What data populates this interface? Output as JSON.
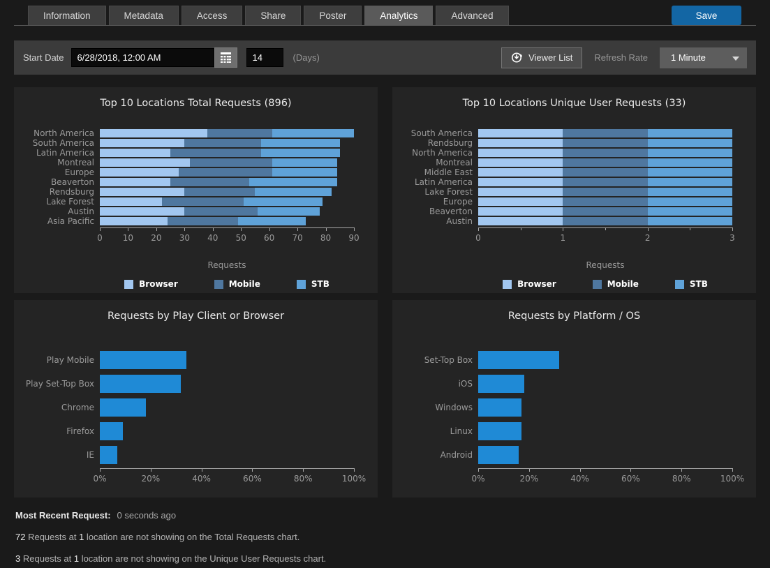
{
  "tabs": {
    "items": [
      "Information",
      "Metadata",
      "Access",
      "Share",
      "Poster",
      "Analytics",
      "Advanced"
    ],
    "active": "Analytics",
    "save_label": "Save"
  },
  "toolbar": {
    "start_date_label": "Start Date",
    "start_date_value": "6/28/2018, 12:00 AM",
    "days_value": "14",
    "days_label": "(Days)",
    "viewer_list_label": "Viewer List",
    "refresh_rate_label": "Refresh Rate",
    "refresh_rate_value": "1 Minute"
  },
  "colors": {
    "browser": "#a2c7f0",
    "mobile": "#4f779f",
    "stb": "#5fa2d8",
    "accent_bar": "#1f8ad6",
    "save_button": "#1366a4",
    "panel_bg": "#242424"
  },
  "chart_data": [
    {
      "type": "bar",
      "orientation": "horizontal",
      "stacked": true,
      "title": "Top 10 Locations Total Requests (896)",
      "categories": [
        "North America",
        "South America",
        "Latin America",
        "Montreal",
        "Europe",
        "Beaverton",
        "Rendsburg",
        "Lake Forest",
        "Austin",
        "Asia Pacific"
      ],
      "series": [
        {
          "name": "Browser",
          "color": "#a2c7f0",
          "values": [
            38,
            30,
            25,
            32,
            28,
            25,
            30,
            22,
            30,
            24
          ]
        },
        {
          "name": "Mobile",
          "color": "#4f779f",
          "values": [
            23,
            27,
            32,
            29,
            33,
            28,
            25,
            29,
            26,
            25
          ]
        },
        {
          "name": "STB",
          "color": "#5fa2d8",
          "values": [
            29,
            28,
            28,
            23,
            23,
            31,
            27,
            28,
            22,
            24
          ]
        }
      ],
      "xlabel": "Requests",
      "xlim": [
        0,
        90
      ],
      "ticks": [
        "0",
        "10",
        "20",
        "30",
        "40",
        "50",
        "60",
        "70",
        "80",
        "90"
      ],
      "legend": true,
      "legend_position": "bottom"
    },
    {
      "type": "bar",
      "orientation": "horizontal",
      "stacked": true,
      "title": "Top 10 Locations Unique User Requests (33)",
      "categories": [
        "South America",
        "Rendsburg",
        "North America",
        "Montreal",
        "Middle East",
        "Latin America",
        "Lake Forest",
        "Europe",
        "Beaverton",
        "Austin"
      ],
      "series": [
        {
          "name": "Browser",
          "color": "#a2c7f0",
          "values": [
            1,
            1,
            1,
            1,
            1,
            1,
            1,
            1,
            1,
            1
          ]
        },
        {
          "name": "Mobile",
          "color": "#4f779f",
          "values": [
            1,
            1,
            1,
            1,
            1,
            1,
            1,
            1,
            1,
            1
          ]
        },
        {
          "name": "STB",
          "color": "#5fa2d8",
          "values": [
            1,
            1,
            1,
            1,
            1,
            1,
            1,
            1,
            1,
            1
          ]
        }
      ],
      "xlabel": "Requests",
      "xlim": [
        0,
        3
      ],
      "ticks": [
        "0",
        "1",
        "2",
        "3"
      ],
      "minor_ticks": [
        0.5,
        1.5,
        2.5
      ],
      "legend": true,
      "legend_position": "bottom"
    },
    {
      "type": "bar",
      "orientation": "horizontal",
      "stacked": false,
      "title": "Requests by Play Client or Browser",
      "categories": [
        "Play Mobile",
        "Play Set-Top Box",
        "Chrome",
        "Firefox",
        "IE"
      ],
      "values": [
        34,
        32,
        18,
        9,
        7
      ],
      "bar_color": "#1f8ad6",
      "xlabel": "",
      "xlim": [
        0,
        100
      ],
      "ticks": [
        "0%",
        "20%",
        "40%",
        "60%",
        "80%",
        "100%"
      ],
      "legend": false
    },
    {
      "type": "bar",
      "orientation": "horizontal",
      "stacked": false,
      "title": "Requests by Platform / OS",
      "categories": [
        "Set-Top Box",
        "iOS",
        "Windows",
        "Linux",
        "Android"
      ],
      "values": [
        32,
        18,
        17,
        17,
        16
      ],
      "bar_color": "#1f8ad6",
      "xlabel": "",
      "xlim": [
        0,
        100
      ],
      "ticks": [
        "0%",
        "20%",
        "40%",
        "60%",
        "80%",
        "100%"
      ],
      "legend": false
    }
  ],
  "footer": {
    "recent_label": "Most Recent Request:",
    "recent_value": "0 seconds ago",
    "note1": {
      "num1": "72",
      "text1": " Requests at ",
      "num2": "1",
      "text2": " location are not showing on the Total Requests chart."
    },
    "note2": {
      "num1": "3",
      "text1": " Requests at ",
      "num2": "1",
      "text2": " location are not showing on the Unique User Requests chart."
    }
  }
}
